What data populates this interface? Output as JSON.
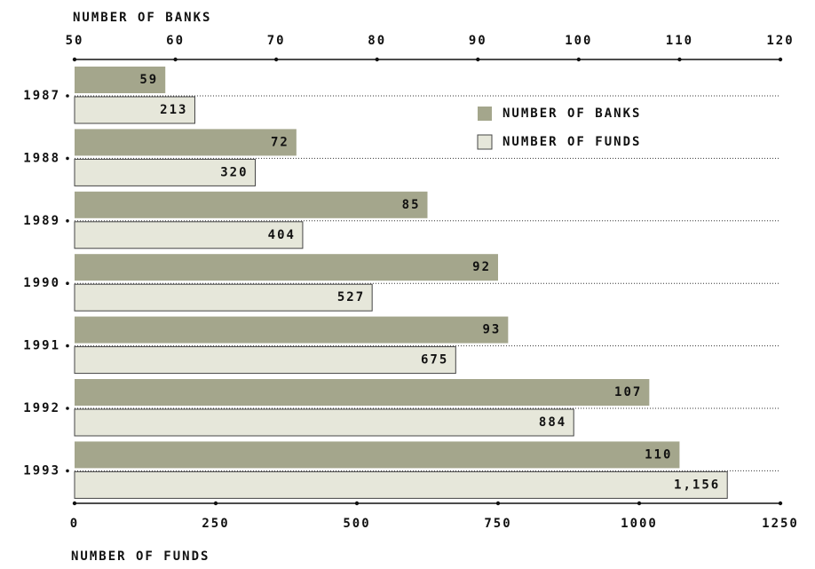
{
  "chart_data": {
    "type": "bar",
    "orientation": "horizontal",
    "categories": [
      "1987",
      "1988",
      "1989",
      "1990",
      "1991",
      "1992",
      "1993"
    ],
    "series": [
      {
        "name": "NUMBER OF BANKS",
        "color": "#a4a68c",
        "axis": "x2",
        "values": [
          59,
          72,
          85,
          92,
          93,
          107,
          110
        ]
      },
      {
        "name": "NUMBER OF FUNDS",
        "color": "#e6e7da",
        "values": [
          213,
          320,
          404,
          527,
          675,
          884,
          1156
        ],
        "value_labels": [
          "213",
          "320",
          "404",
          "527",
          "675",
          "884",
          "1,156"
        ]
      }
    ],
    "x2_label": "NUMBER OF BANKS",
    "x2lim": [
      50,
      120
    ],
    "x2ticks": [
      50,
      60,
      70,
      80,
      90,
      100,
      110,
      120
    ],
    "x_label": "NUMBER OF FUNDS",
    "xlim": [
      0,
      1250
    ],
    "xticks": [
      0,
      250,
      500,
      750,
      1000,
      1250
    ],
    "legend": "upper right",
    "grid": true
  }
}
